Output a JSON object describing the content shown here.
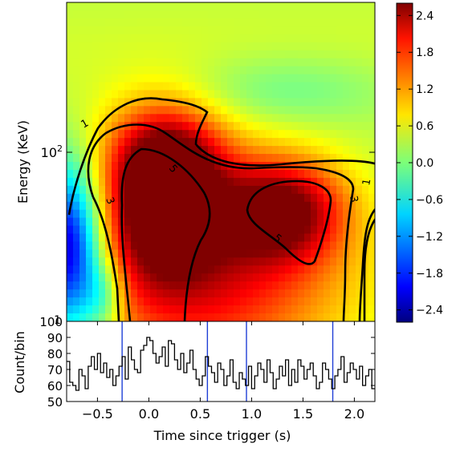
{
  "chart_data": [
    {
      "type": "heatmap",
      "title": "",
      "xlabel": "",
      "ylabel": "Energy (KeV)",
      "xlim": [
        -0.8,
        2.2
      ],
      "yscale": "log",
      "ylim": [
        8,
        600
      ],
      "ytick_labels": [
        "10^2"
      ],
      "colorbar": {
        "range": [
          -2.6,
          2.6
        ],
        "tick_values": [
          2.4,
          1.8,
          1.2,
          0.6,
          0.0,
          -0.6,
          -1.2,
          -1.8,
          -2.4
        ],
        "tick_labels": [
          "2.4",
          "1.8",
          "1.2",
          "0.6",
          "0.0",
          "−0.6",
          "−1.2",
          "−1.8",
          "−2.4"
        ],
        "colormap": "jet"
      },
      "contour_labels": [
        "1",
        "3",
        "5",
        "5",
        "3",
        "1"
      ]
    },
    {
      "type": "line",
      "title": "",
      "xlabel": "Time since trigger (s)",
      "ylabel": "Count/bin",
      "xlim": [
        -0.8,
        2.2
      ],
      "ylim": [
        50,
        100
      ],
      "xticks": [
        -0.5,
        0.0,
        0.5,
        1.0,
        1.5,
        2.0
      ],
      "xtick_labels": [
        "−0.5",
        "0.0",
        "0.5",
        "1.0",
        "1.5",
        "2.0"
      ],
      "yticks": [
        50,
        60,
        70,
        80,
        90,
        100
      ],
      "ytick_labels": [
        "50",
        "60",
        "70",
        "80",
        "90",
        "100"
      ],
      "vertical_lines_x": [
        -0.26,
        0.57,
        0.95,
        1.79
      ],
      "vline_color": "#1f3fd6",
      "step_x": [
        -0.8,
        -0.77,
        -0.74,
        -0.71,
        -0.68,
        -0.65,
        -0.62,
        -0.59,
        -0.56,
        -0.53,
        -0.5,
        -0.47,
        -0.44,
        -0.41,
        -0.38,
        -0.35,
        -0.32,
        -0.29,
        -0.26,
        -0.23,
        -0.2,
        -0.17,
        -0.14,
        -0.11,
        -0.08,
        -0.05,
        -0.02,
        0.01,
        0.04,
        0.07,
        0.1,
        0.13,
        0.16,
        0.19,
        0.22,
        0.25,
        0.28,
        0.31,
        0.34,
        0.37,
        0.4,
        0.43,
        0.46,
        0.49,
        0.52,
        0.55,
        0.58,
        0.61,
        0.64,
        0.67,
        0.7,
        0.73,
        0.76,
        0.79,
        0.82,
        0.85,
        0.88,
        0.91,
        0.94,
        0.97,
        1.0,
        1.03,
        1.06,
        1.09,
        1.12,
        1.15,
        1.18,
        1.21,
        1.24,
        1.27,
        1.3,
        1.33,
        1.36,
        1.39,
        1.42,
        1.45,
        1.48,
        1.51,
        1.54,
        1.57,
        1.6,
        1.63,
        1.66,
        1.69,
        1.72,
        1.75,
        1.78,
        1.81,
        1.84,
        1.87,
        1.9,
        1.93,
        1.96,
        1.99,
        2.02,
        2.05,
        2.08,
        2.11,
        2.14,
        2.17
      ],
      "step_y": [
        75,
        62,
        60,
        57,
        70,
        66,
        58,
        72,
        78,
        70,
        80,
        68,
        74,
        65,
        70,
        60,
        66,
        72,
        78,
        64,
        84,
        76,
        70,
        68,
        82,
        85,
        90,
        88,
        80,
        74,
        78,
        84,
        72,
        88,
        86,
        76,
        70,
        80,
        68,
        74,
        82,
        70,
        64,
        60,
        66,
        78,
        72,
        68,
        62,
        74,
        70,
        60,
        66,
        76,
        62,
        58,
        68,
        64,
        60,
        72,
        58,
        66,
        74,
        70,
        62,
        76,
        68,
        58,
        64,
        72,
        66,
        76,
        60,
        70,
        62,
        76,
        72,
        64,
        70,
        74,
        66,
        58,
        62,
        74,
        70,
        64,
        58,
        66,
        70,
        78,
        62,
        68,
        74,
        70,
        64,
        72,
        60,
        66,
        70,
        58
      ]
    }
  ]
}
